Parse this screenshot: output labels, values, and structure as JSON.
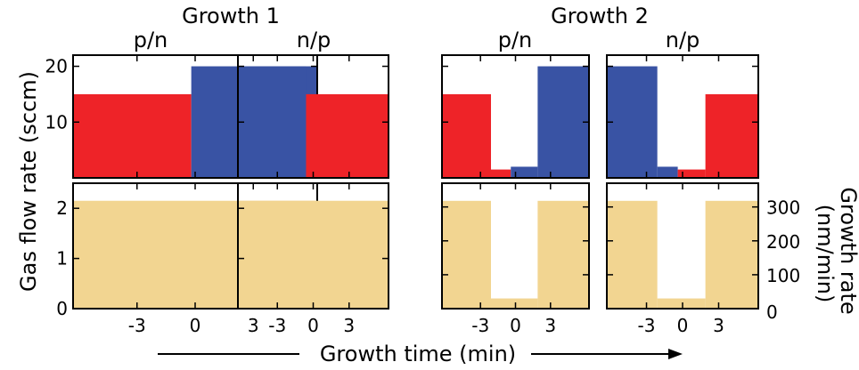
{
  "colors": {
    "p": "#ee2328",
    "n": "#3953a4",
    "growth": "#f2d591",
    "axis": "#000000"
  },
  "figure": {
    "group_titles": [
      "Growth 1",
      "Growth 2"
    ],
    "ylabel_left": "Gas flow rate (sccm)",
    "ylabel_right_line1": "Growth rate",
    "ylabel_right_line2": "(nm/min)",
    "xlabel": "Growth time (min)"
  },
  "chart_data": [
    {
      "type": "bar",
      "panel": "growth1-pn-flow",
      "title": "p/n",
      "xlim": [
        -6.3,
        6.3
      ],
      "ylim": [
        0,
        22
      ],
      "yticks": [
        10,
        20
      ],
      "xticks": [
        -3,
        0,
        3
      ],
      "show_y_ticklabels": true,
      "show_x_ticklabels": false,
      "segments": [
        {
          "x0": -6.3,
          "x1": -0.2,
          "value": 15,
          "series": "p"
        },
        {
          "x0": -0.2,
          "x1": 6.3,
          "value": 20,
          "series": "n"
        }
      ]
    },
    {
      "type": "bar",
      "panel": "growth1-np-flow",
      "title": "n/p",
      "xlim": [
        -6.3,
        6.3
      ],
      "ylim": [
        0,
        22
      ],
      "yticks": [
        10,
        20
      ],
      "xticks": [
        -3,
        0,
        3
      ],
      "show_y_ticklabels": false,
      "show_x_ticklabels": false,
      "segments": [
        {
          "x0": -6.3,
          "x1": -0.6,
          "value": 20,
          "series": "n"
        },
        {
          "x0": -0.6,
          "x1": 6.3,
          "value": 15,
          "series": "p"
        }
      ]
    },
    {
      "type": "bar",
      "panel": "growth2-pn-flow",
      "title": "p/n",
      "xlim": [
        -6.3,
        6.3
      ],
      "ylim": [
        0,
        22
      ],
      "yticks": [
        10,
        20
      ],
      "xticks": [
        -3,
        0,
        3
      ],
      "show_y_ticklabels": false,
      "show_x_ticklabels": false,
      "segments": [
        {
          "x0": -6.3,
          "x1": -2.1,
          "value": 15,
          "series": "p"
        },
        {
          "x0": -2.1,
          "x1": -0.4,
          "value": 1.5,
          "series": "p"
        },
        {
          "x0": -0.4,
          "x1": 1.9,
          "value": 2,
          "series": "n"
        },
        {
          "x0": 1.9,
          "x1": 6.3,
          "value": 20,
          "series": "n"
        }
      ]
    },
    {
      "type": "bar",
      "panel": "growth2-np-flow",
      "title": "n/p",
      "xlim": [
        -6.3,
        6.3
      ],
      "ylim": [
        0,
        22
      ],
      "yticks": [
        10,
        20
      ],
      "xticks": [
        -3,
        0,
        3
      ],
      "show_y_ticklabels": false,
      "show_x_ticklabels": false,
      "segments": [
        {
          "x0": -6.3,
          "x1": -2.1,
          "value": 20,
          "series": "n"
        },
        {
          "x0": -2.1,
          "x1": -0.4,
          "value": 2,
          "series": "n"
        },
        {
          "x0": -0.4,
          "x1": 1.9,
          "value": 1.5,
          "series": "p"
        },
        {
          "x0": 1.9,
          "x1": 6.3,
          "value": 15,
          "series": "p"
        }
      ]
    },
    {
      "type": "bar",
      "panel": "growth1-pn-rate",
      "xlim": [
        -6.3,
        6.3
      ],
      "ylim": [
        0,
        2.5
      ],
      "yticks": [
        0,
        1,
        2
      ],
      "xticks": [
        -3,
        0,
        3
      ],
      "show_y_ticklabels": true,
      "show_x_ticklabels": true,
      "segments": [
        {
          "x0": -6.3,
          "x1": 6.3,
          "value": 2.15,
          "series": "growth"
        }
      ]
    },
    {
      "type": "bar",
      "panel": "growth1-np-rate",
      "xlim": [
        -6.3,
        6.3
      ],
      "ylim": [
        0,
        2.5
      ],
      "yticks": [
        0,
        1,
        2
      ],
      "xticks": [
        -3,
        0,
        3
      ],
      "show_y_ticklabels": false,
      "show_x_ticklabels": true,
      "segments": [
        {
          "x0": -6.3,
          "x1": 6.3,
          "value": 2.15,
          "series": "growth"
        }
      ]
    },
    {
      "type": "bar",
      "panel": "growth2-pn-rate",
      "xlim": [
        -6.3,
        6.3
      ],
      "ylim": [
        0,
        370
      ],
      "yticks": [
        100,
        200,
        300
      ],
      "xticks": [
        -3,
        0,
        3
      ],
      "show_y_ticklabels": false,
      "show_x_ticklabels": true,
      "segments": [
        {
          "x0": -6.3,
          "x1": -2.1,
          "value": 318,
          "series": "growth"
        },
        {
          "x0": -2.1,
          "x1": 1.9,
          "value": 30,
          "series": "growth"
        },
        {
          "x0": 1.9,
          "x1": 6.3,
          "value": 318,
          "series": "growth"
        }
      ]
    },
    {
      "type": "bar",
      "panel": "growth2-np-rate",
      "xlim": [
        -6.3,
        6.3
      ],
      "ylim": [
        0,
        370
      ],
      "yticks": [
        100,
        200,
        300
      ],
      "xticks": [
        -3,
        0,
        3
      ],
      "show_y_ticklabels": false,
      "show_x_ticklabels": true,
      "segments": [
        {
          "x0": -6.3,
          "x1": -2.1,
          "value": 318,
          "series": "growth"
        },
        {
          "x0": -2.1,
          "x1": 1.9,
          "value": 30,
          "series": "growth"
        },
        {
          "x0": 1.9,
          "x1": 6.3,
          "value": 318,
          "series": "growth"
        }
      ]
    }
  ],
  "right_axis": {
    "ylim": [
      0,
      370
    ],
    "ticks": [
      0,
      100,
      200,
      300
    ]
  }
}
